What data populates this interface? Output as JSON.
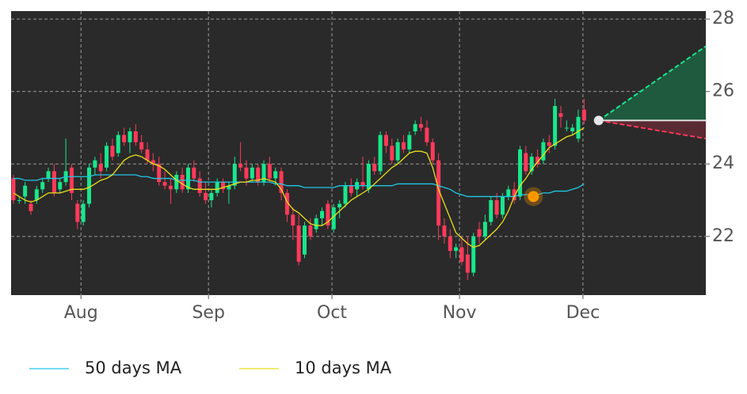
{
  "chart_data": {
    "type": "candlestick",
    "xlim": [
      -0.4,
      118.9
    ],
    "xticks": [
      {
        "value": 11.6,
        "label": "Aug"
      },
      {
        "value": 33.5,
        "label": "Sep"
      },
      {
        "value": 54.7,
        "label": "Oct"
      },
      {
        "value": 76.6,
        "label": "Nov"
      },
      {
        "value": 97.8,
        "label": "Dec"
      }
    ],
    "ylim": [
      20.38,
      28.22
    ],
    "yticks": [
      22,
      24,
      26,
      28
    ],
    "grid": true,
    "up_color": "#19e68c",
    "down_color": "#ff3a5a",
    "candles": {
      "open": [
        23.6,
        23.0,
        23.1,
        22.9,
        23.0,
        23.3,
        23.6,
        23.8,
        23.3,
        23.5,
        23.9,
        22.9,
        22.4,
        22.9,
        23.9,
        24.0,
        23.9,
        24.5,
        24.3,
        24.8,
        24.6,
        24.9,
        24.6,
        24.4,
        24.1,
        24.0,
        23.5,
        23.4,
        23.3,
        23.7,
        23.3,
        23.9,
        23.6,
        23.2,
        23.0,
        23.2,
        23.5,
        23.3,
        23.4,
        24.0,
        23.9,
        23.6,
        23.9,
        23.5,
        24.0,
        23.6,
        23.8,
        23.2,
        22.6,
        22.3,
        21.5,
        22.3,
        22.2,
        22.5,
        22.9,
        22.2,
        22.8,
        22.9,
        23.4,
        23.3,
        23.5,
        23.3,
        24.0,
        23.8,
        24.8,
        24.5,
        24.1,
        24.6,
        24.4,
        24.9,
        25.1,
        25.0,
        24.6,
        24.1,
        22.3,
        22.0,
        21.6,
        21.7,
        21.5,
        21.0,
        22.2,
        22.0,
        22.4,
        23.0,
        22.6,
        23.1,
        23.3,
        23.1,
        24.3,
        23.8,
        24.2,
        24.1,
        24.6,
        24.5,
        25.4,
        25.0,
        24.9,
        24.7,
        25.5
      ],
      "high": [
        23.7,
        23.1,
        23.5,
        23.0,
        23.4,
        23.6,
        23.9,
        24.0,
        23.6,
        24.7,
        24.0,
        23.0,
        23.0,
        24.0,
        24.2,
        24.3,
        24.6,
        24.7,
        24.9,
        25.0,
        25.0,
        25.1,
        24.8,
        24.6,
        24.3,
        24.2,
        23.8,
        23.6,
        23.8,
        23.9,
        24.0,
        24.1,
        23.8,
        23.5,
        23.3,
        23.6,
        23.6,
        23.5,
        24.2,
        24.6,
        24.1,
        24.0,
        24.0,
        24.1,
        24.2,
        23.9,
        23.9,
        23.3,
        22.8,
        22.6,
        22.4,
        22.5,
        22.6,
        22.8,
        23.0,
        22.9,
        23.0,
        23.5,
        23.6,
        23.6,
        24.2,
        24.1,
        24.2,
        24.9,
        24.9,
        24.7,
        24.7,
        24.8,
        24.9,
        25.2,
        25.3,
        25.2,
        24.7,
        24.3,
        22.5,
        22.2,
        21.8,
        22.0,
        22.0,
        22.1,
        22.4,
        22.6,
        23.1,
        23.2,
        23.2,
        23.4,
        23.5,
        24.5,
        24.5,
        24.3,
        24.4,
        24.7,
        24.8,
        25.8,
        25.6,
        25.2,
        25.1,
        25.5,
        25.8
      ],
      "low": [
        22.9,
        22.9,
        22.9,
        22.6,
        22.9,
        23.2,
        23.5,
        23.1,
        23.2,
        23.4,
        23.0,
        22.2,
        22.3,
        22.8,
        23.7,
        23.6,
        23.8,
        24.1,
        24.2,
        24.5,
        24.3,
        24.5,
        24.3,
        24.0,
        23.8,
        23.4,
        23.3,
        22.9,
        23.2,
        23.2,
        23.2,
        23.5,
        23.1,
        22.9,
        22.8,
        23.1,
        23.2,
        22.9,
        23.3,
        23.8,
        23.4,
        23.5,
        23.4,
        23.4,
        23.5,
        23.4,
        23.0,
        22.4,
        21.9,
        21.2,
        21.4,
        21.9,
        22.1,
        22.3,
        22.2,
        22.1,
        22.5,
        22.8,
        23.1,
        23.1,
        23.3,
        23.2,
        23.7,
        23.7,
        24.3,
        24.0,
        24.0,
        24.3,
        24.3,
        24.8,
        24.9,
        24.5,
        24.0,
        21.9,
        21.8,
        21.4,
        21.4,
        21.2,
        20.8,
        20.9,
        21.8,
        21.9,
        22.3,
        22.5,
        22.5,
        23.0,
        22.9,
        23.0,
        23.7,
        23.7,
        23.9,
        24.0,
        24.3,
        24.4,
        25.0,
        24.9,
        24.8,
        24.6,
        25.1
      ],
      "close": [
        23.0,
        23.0,
        23.4,
        22.7,
        23.3,
        23.5,
        23.8,
        23.2,
        23.5,
        23.8,
        23.2,
        22.4,
        22.9,
        23.9,
        24.1,
        23.8,
        24.5,
        24.2,
        24.8,
        24.6,
        24.9,
        24.6,
        24.4,
        24.1,
        24.0,
        23.5,
        23.4,
        23.3,
        23.7,
        23.3,
        23.9,
        23.6,
        23.2,
        23.0,
        23.2,
        23.5,
        23.3,
        23.4,
        24.0,
        23.9,
        23.6,
        23.9,
        23.5,
        24.0,
        23.6,
        23.8,
        23.2,
        22.6,
        22.3,
        21.3,
        22.3,
        22.0,
        22.5,
        22.7,
        22.3,
        22.8,
        22.9,
        23.4,
        23.2,
        23.5,
        23.4,
        24.0,
        23.8,
        24.8,
        24.5,
        24.1,
        24.6,
        24.4,
        24.8,
        25.1,
        25.0,
        24.6,
        24.1,
        22.3,
        22.0,
        21.6,
        21.7,
        21.3,
        21.0,
        22.0,
        22.0,
        22.4,
        23.0,
        22.6,
        23.1,
        23.3,
        23.0,
        24.4,
        23.8,
        24.2,
        24.0,
        24.6,
        24.5,
        25.6,
        25.3,
        25.0,
        25.0,
        25.3,
        25.2
      ]
    },
    "series": [
      {
        "name": "50 days MA",
        "color": "#1ec8e6",
        "values": [
          23.6,
          23.6,
          23.55,
          23.55,
          23.55,
          23.6,
          23.6,
          23.6,
          23.6,
          23.65,
          23.65,
          23.65,
          23.65,
          23.65,
          23.7,
          23.7,
          23.7,
          23.7,
          23.7,
          23.7,
          23.7,
          23.7,
          23.65,
          23.65,
          23.6,
          23.6,
          23.6,
          23.6,
          23.55,
          23.55,
          23.55,
          23.55,
          23.5,
          23.5,
          23.5,
          23.5,
          23.5,
          23.5,
          23.5,
          23.5,
          23.5,
          23.5,
          23.5,
          23.5,
          23.5,
          23.45,
          23.45,
          23.4,
          23.4,
          23.4,
          23.35,
          23.35,
          23.35,
          23.35,
          23.35,
          23.35,
          23.4,
          23.4,
          23.4,
          23.4,
          23.4,
          23.4,
          23.4,
          23.4,
          23.4,
          23.4,
          23.45,
          23.45,
          23.45,
          23.45,
          23.45,
          23.45,
          23.45,
          23.4,
          23.35,
          23.3,
          23.2,
          23.15,
          23.1,
          23.1,
          23.1,
          23.1,
          23.1,
          23.1,
          23.1,
          23.1,
          23.1,
          23.15,
          23.15,
          23.15,
          23.15,
          23.2,
          23.2,
          23.25,
          23.25,
          23.25,
          23.3,
          23.35,
          23.45
        ]
      },
      {
        "name": "10 days MA",
        "color": "#e8e01a",
        "values": [
          23.2,
          23.1,
          23.0,
          22.95,
          23.0,
          23.1,
          23.2,
          23.2,
          23.2,
          23.25,
          23.3,
          23.3,
          23.3,
          23.35,
          23.45,
          23.55,
          23.6,
          23.7,
          23.9,
          24.1,
          24.2,
          24.25,
          24.2,
          24.1,
          24.0,
          23.95,
          23.85,
          23.7,
          23.55,
          23.45,
          23.35,
          23.3,
          23.3,
          23.3,
          23.3,
          23.3,
          23.35,
          23.4,
          23.45,
          23.5,
          23.5,
          23.55,
          23.55,
          23.6,
          23.55,
          23.5,
          23.3,
          22.95,
          22.75,
          22.65,
          22.5,
          22.35,
          22.3,
          22.3,
          22.4,
          22.55,
          22.7,
          22.85,
          23.0,
          23.1,
          23.2,
          23.3,
          23.45,
          23.6,
          23.75,
          23.9,
          24.0,
          24.15,
          24.3,
          24.35,
          24.35,
          24.3,
          23.9,
          23.3,
          22.9,
          22.5,
          22.1,
          21.95,
          21.8,
          21.7,
          21.75,
          21.9,
          22.05,
          22.2,
          22.4,
          22.7,
          23.1,
          23.4,
          23.6,
          23.85,
          24.05,
          24.25,
          24.45,
          24.55,
          24.65,
          24.75,
          24.8,
          24.9,
          25.0
        ]
      }
    ],
    "forecast": {
      "x": [
        100.5,
        118.9
      ],
      "mid": [
        25.2,
        25.2
      ],
      "upper": [
        25.2,
        27.25
      ],
      "lower": [
        25.2,
        24.7
      ]
    },
    "marker": {
      "x": 89.3,
      "y": 23.1
    }
  }
}
